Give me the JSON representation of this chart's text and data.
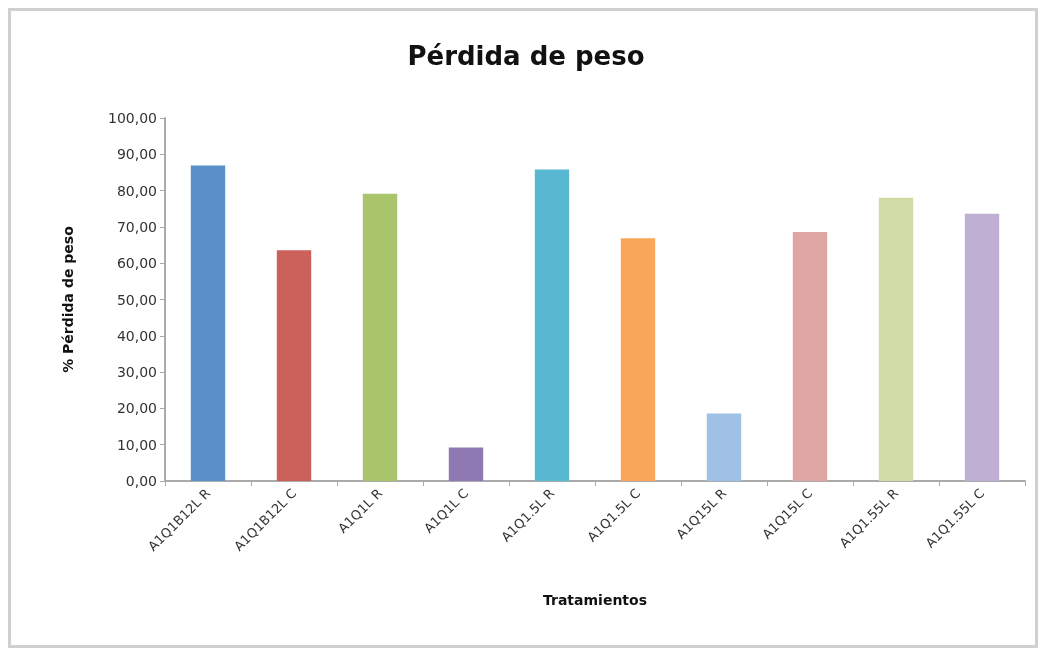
{
  "chart_data": {
    "type": "bar",
    "title": "Pérdida de peso",
    "xlabel": "Tratamientos",
    "ylabel": "% Pérdida de peso",
    "categories": [
      "A1Q1B12L R",
      "A1Q1B12L C",
      "A1Q1L R",
      "A1Q1L C",
      "A1Q1.5L R",
      "A1Q1.5L C",
      "A1Q15L R",
      "A1Q15L C",
      "A1Q1.55L R",
      "A1Q1.55L C"
    ],
    "values": [
      86.9,
      63.6,
      79.1,
      9.2,
      85.8,
      66.9,
      18.6,
      68.6,
      78.0,
      73.6
    ],
    "colors": [
      "#5b8fc9",
      "#cc615b",
      "#a9c46a",
      "#8f79b2",
      "#59b8d1",
      "#f9a65a",
      "#a0c1e6",
      "#e0a6a4",
      "#cfdca7",
      "#bfb0d3"
    ],
    "ylim": [
      0,
      100
    ],
    "yticks": [
      {
        "value": 0,
        "label": "0,00"
      },
      {
        "value": 10,
        "label": "10,00"
      },
      {
        "value": 20,
        "label": "20,00"
      },
      {
        "value": 30,
        "label": "30,00"
      },
      {
        "value": 40,
        "label": "40,00"
      },
      {
        "value": 50,
        "label": "50,00"
      },
      {
        "value": 60,
        "label": "60,00"
      },
      {
        "value": 70,
        "label": "70,00"
      },
      {
        "value": 80,
        "label": "80,00"
      },
      {
        "value": 90,
        "label": "90,00"
      },
      {
        "value": 100,
        "label": "100,00"
      }
    ],
    "grid": false
  }
}
